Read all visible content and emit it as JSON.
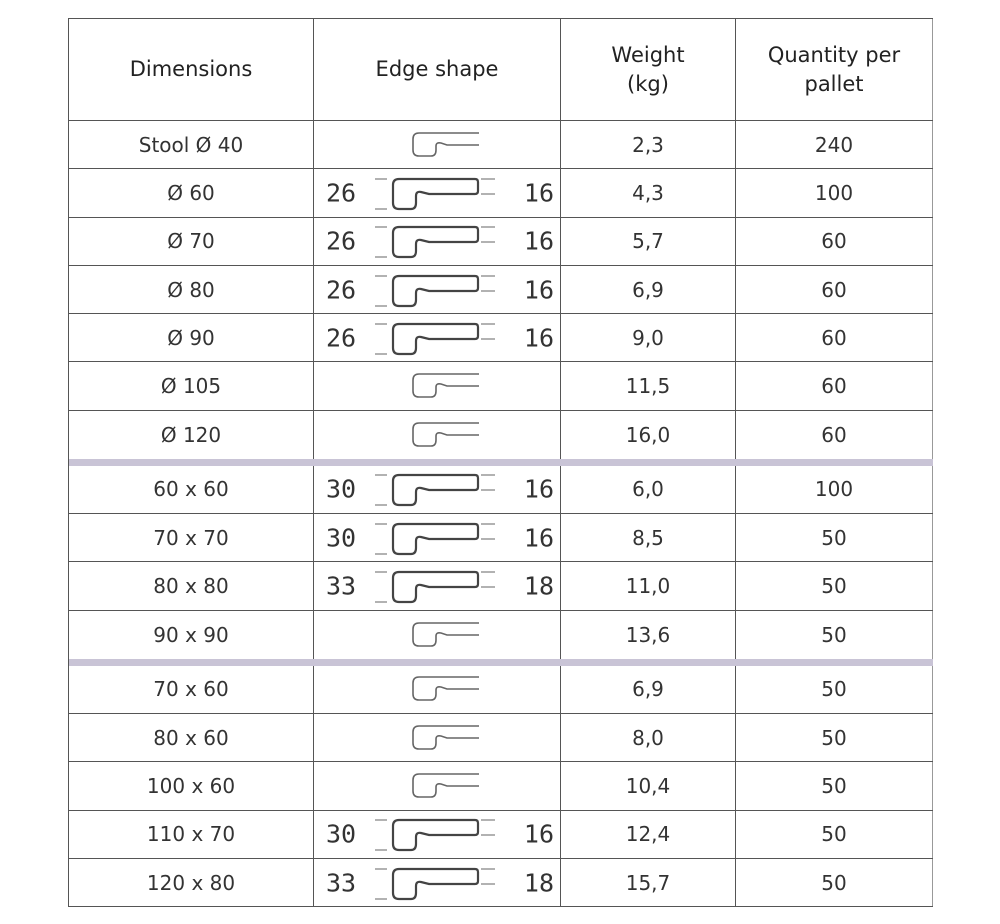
{
  "headers": [
    "Dimensions",
    "Edge shape",
    "Weight\n(kg)",
    "Quantity per\npallet"
  ],
  "colors": {
    "separator": "#c9c4d6",
    "border": "#555555"
  },
  "rows": [
    {
      "dim": "Stool Ø 40",
      "edge": {
        "type": "simple"
      },
      "weight": "2,3",
      "qty": "240"
    },
    {
      "dim": "Ø 60",
      "edge": {
        "type": "dimensioned",
        "left": "26",
        "right": "16"
      },
      "weight": "4,3",
      "qty": "100"
    },
    {
      "dim": "Ø 70",
      "edge": {
        "type": "dimensioned",
        "left": "26",
        "right": "16"
      },
      "weight": "5,7",
      "qty": "60"
    },
    {
      "dim": "Ø 80",
      "edge": {
        "type": "dimensioned",
        "left": "26",
        "right": "16"
      },
      "weight": "6,9",
      "qty": "60"
    },
    {
      "dim": "Ø 90",
      "edge": {
        "type": "dimensioned",
        "left": "26",
        "right": "16"
      },
      "weight": "9,0",
      "qty": "60"
    },
    {
      "dim": "Ø 105",
      "edge": {
        "type": "simple"
      },
      "weight": "11,5",
      "qty": "60"
    },
    {
      "dim": "Ø 120",
      "edge": {
        "type": "simple"
      },
      "weight": "16,0",
      "qty": "60",
      "sep": true
    },
    {
      "dim": "60 x 60",
      "edge": {
        "type": "dimensioned",
        "left": "30",
        "right": "16"
      },
      "weight": "6,0",
      "qty": "100"
    },
    {
      "dim": "70 x 70",
      "edge": {
        "type": "dimensioned",
        "left": "30",
        "right": "16"
      },
      "weight": "8,5",
      "qty": "50"
    },
    {
      "dim": "80 x 80",
      "edge": {
        "type": "dimensioned",
        "left": "33",
        "right": "18"
      },
      "weight": "11,0",
      "qty": "50"
    },
    {
      "dim": "90 x 90",
      "edge": {
        "type": "simple"
      },
      "weight": "13,6",
      "qty": "50",
      "sep": true
    },
    {
      "dim": "70 x 60",
      "edge": {
        "type": "simple"
      },
      "weight": "6,9",
      "qty": "50"
    },
    {
      "dim": "80 x 60",
      "edge": {
        "type": "simple"
      },
      "weight": "8,0",
      "qty": "50"
    },
    {
      "dim": "100 x 60",
      "edge": {
        "type": "simple"
      },
      "weight": "10,4",
      "qty": "50"
    },
    {
      "dim": "110 x 70",
      "edge": {
        "type": "dimensioned",
        "left": "30",
        "right": "16"
      },
      "weight": "12,4",
      "qty": "50"
    },
    {
      "dim": "120 x 80",
      "edge": {
        "type": "dimensioned",
        "left": "33",
        "right": "18"
      },
      "weight": "15,7",
      "qty": "50"
    }
  ]
}
